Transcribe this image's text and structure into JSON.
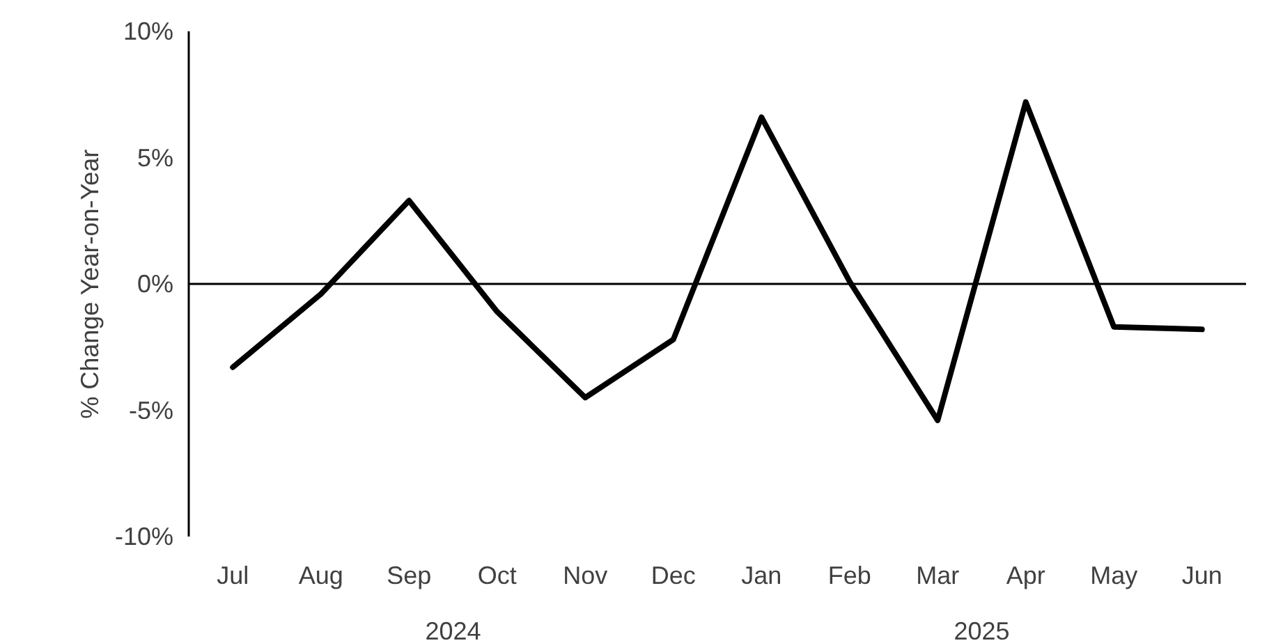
{
  "chart_data": {
    "type": "line",
    "ylabel": "% Change Year-on-Year",
    "categories": [
      "Jul",
      "Aug",
      "Sep",
      "Oct",
      "Nov",
      "Dec",
      "Jan",
      "Feb",
      "Mar",
      "Apr",
      "May",
      "Jun"
    ],
    "series": [
      {
        "color": "#000000",
        "values": [
          -3.3,
          -0.4,
          3.3,
          -1.1,
          -4.5,
          -2.2,
          6.6,
          0.1,
          -5.4,
          7.2,
          -1.7,
          -1.8
        ]
      }
    ],
    "ylim": [
      -10,
      10
    ],
    "yticks": [
      {
        "value": -10,
        "label": "-10%"
      },
      {
        "value": -5,
        "label": "-5%"
      },
      {
        "value": 0,
        "label": "0%"
      },
      {
        "value": 5,
        "label": "5%"
      },
      {
        "value": 10,
        "label": "10%"
      }
    ],
    "ref_lines": [
      {
        "axis": "y",
        "value": 0,
        "color": "#000000",
        "line_style": "solid"
      }
    ],
    "annotations": [
      "2024",
      "2025"
    ],
    "grid": false,
    "marker": "none",
    "line_style": "solid"
  }
}
